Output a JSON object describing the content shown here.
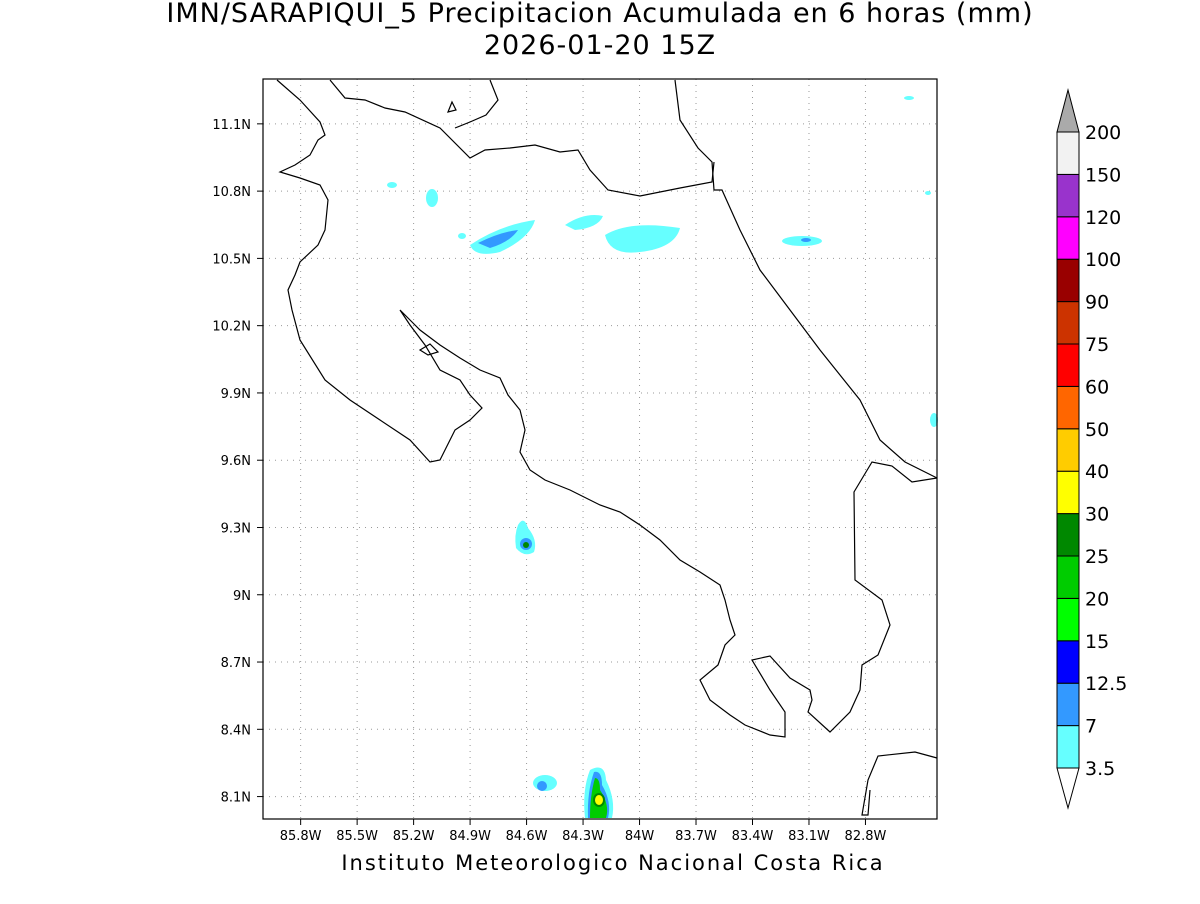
{
  "title": "IMN/SARAPIQUI_5 Precipitacion Acumulada en 6 horas (mm)",
  "subtitle": "2026-01-20 15Z",
  "footer": "Instituto Meteorologico Nacional Costa Rica",
  "map": {
    "xlim": [
      -86.0,
      -82.42
    ],
    "ylim": [
      8.0,
      11.3
    ],
    "grid": true,
    "xticks": [
      {
        "value": -85.8,
        "label": "85.8W"
      },
      {
        "value": -85.5,
        "label": "85.5W"
      },
      {
        "value": -85.2,
        "label": "85.2W"
      },
      {
        "value": -84.9,
        "label": "84.9W"
      },
      {
        "value": -84.6,
        "label": "84.6W"
      },
      {
        "value": -84.3,
        "label": "84.3W"
      },
      {
        "value": -84.0,
        "label": "84W"
      },
      {
        "value": -83.7,
        "label": "83.7W"
      },
      {
        "value": -83.4,
        "label": "83.4W"
      },
      {
        "value": -83.1,
        "label": "83.1W"
      },
      {
        "value": -82.8,
        "label": "82.8W"
      }
    ],
    "yticks": [
      {
        "value": 8.1,
        "label": "8.1N"
      },
      {
        "value": 8.4,
        "label": "8.4N"
      },
      {
        "value": 8.7,
        "label": "8.7N"
      },
      {
        "value": 9.0,
        "label": "9N"
      },
      {
        "value": 9.3,
        "label": "9.3N"
      },
      {
        "value": 9.6,
        "label": "9.6N"
      },
      {
        "value": 9.9,
        "label": "9.9N"
      },
      {
        "value": 10.2,
        "label": "10.2N"
      },
      {
        "value": 10.5,
        "label": "10.5N"
      },
      {
        "value": 10.8,
        "label": "10.8N"
      },
      {
        "value": 11.1,
        "label": "11.1N"
      }
    ]
  },
  "colorbar": {
    "labels": [
      "3.5",
      "7",
      "12.5",
      "15",
      "20",
      "25",
      "30",
      "40",
      "50",
      "60",
      "75",
      "90",
      "100",
      "120",
      "150",
      "200"
    ],
    "colors": [
      "#66ffff",
      "#3399ff",
      "#0000ff",
      "#00ff00",
      "#00cc00",
      "#008800",
      "#ffff00",
      "#ffcc00",
      "#ff6600",
      "#ff0000",
      "#cc3300",
      "#990000",
      "#ff00ff",
      "#9933cc",
      "#f2f2f2"
    ],
    "below_color": "#ffffff",
    "above_color": "#aaaaaa"
  }
}
